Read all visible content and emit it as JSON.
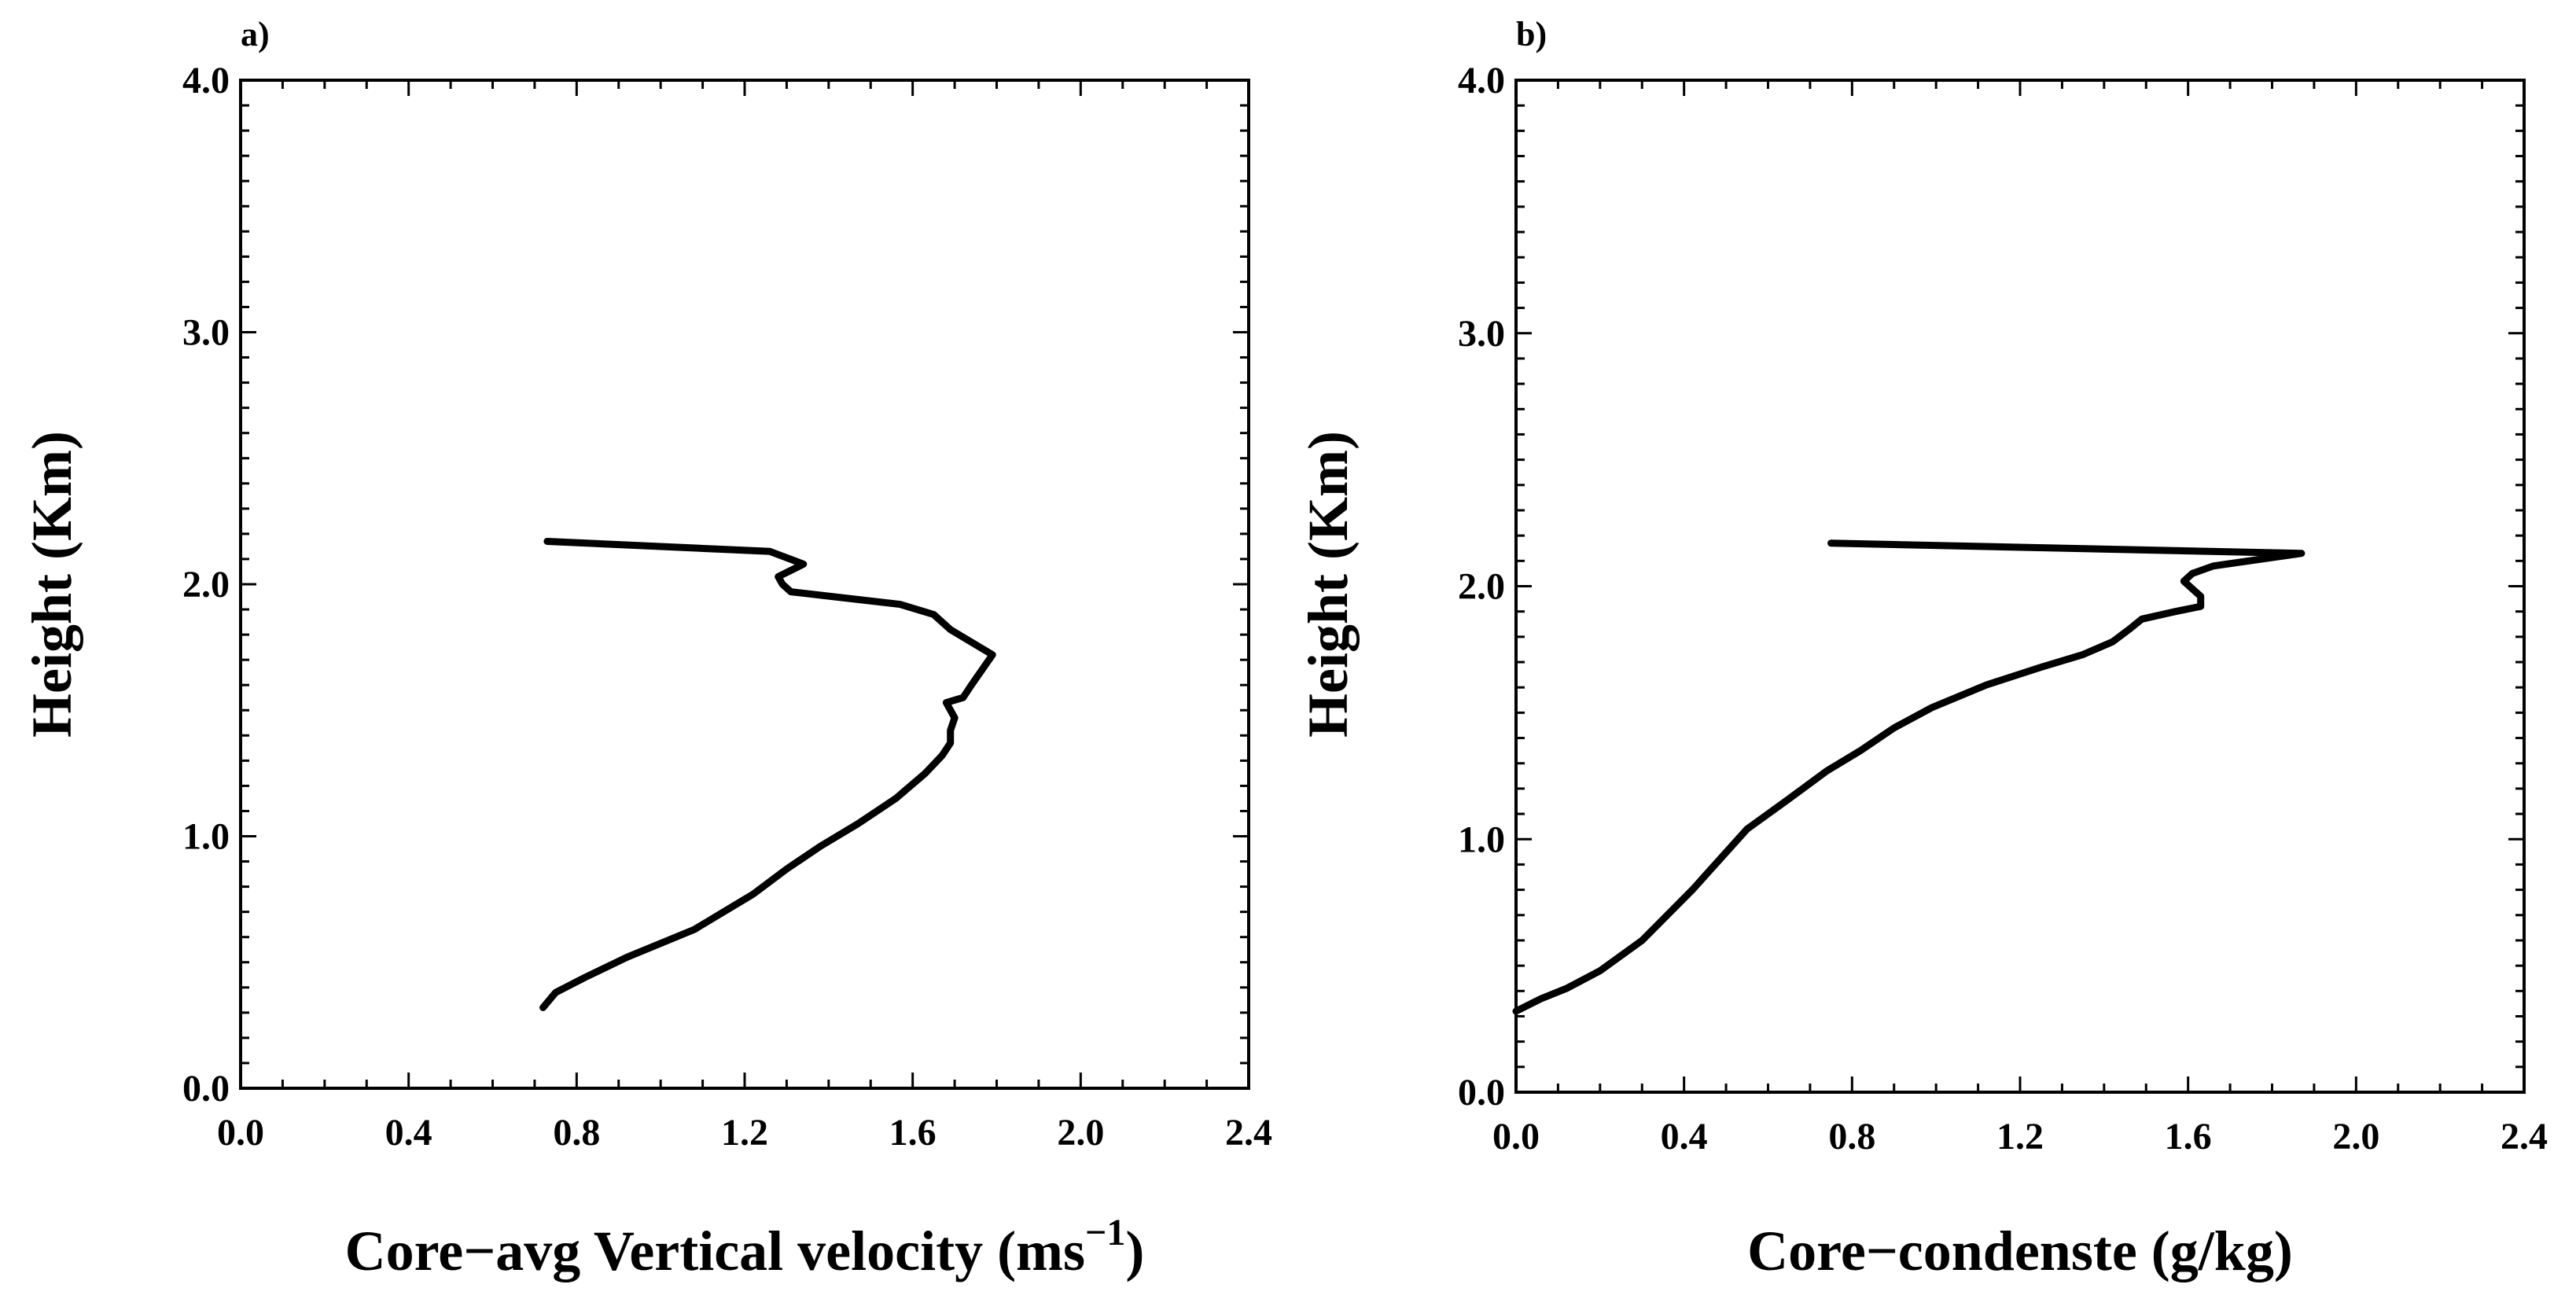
{
  "chart_data": [
    {
      "type": "line",
      "panel_label": "a)",
      "title": "",
      "xlabel": "Core−avg Vertical velocity (ms",
      "xlabel_sup": "−1",
      "xlabel_close": ")",
      "ylabel": "Height (Km)",
      "xlim": [
        0.0,
        2.4
      ],
      "ylim": [
        0.0,
        4.0
      ],
      "xticks": [
        0.0,
        0.4,
        0.8,
        1.2,
        1.6,
        2.0,
        2.4
      ],
      "xtick_labels": [
        "0.0",
        "0.4",
        "0.8",
        "1.2",
        "1.6",
        "2.0",
        "2.4"
      ],
      "yticks": [
        0.0,
        1.0,
        2.0,
        3.0,
        4.0
      ],
      "ytick_labels": [
        "0.0",
        "1.0",
        "2.0",
        "3.0",
        "4.0"
      ],
      "x_minor_step": 0.1,
      "y_minor_step": 0.1,
      "grid": false,
      "series": [
        {
          "name": "core-avg vertical velocity",
          "x": [
            0.72,
            0.75,
            0.82,
            0.92,
            1.08,
            1.22,
            1.3,
            1.38,
            1.47,
            1.56,
            1.63,
            1.67,
            1.69,
            1.69,
            1.7,
            1.68,
            1.72,
            1.74,
            1.79,
            1.69,
            1.65,
            1.57,
            1.31,
            1.29,
            1.28,
            1.34,
            1.26,
            0.73
          ],
          "y": [
            0.32,
            0.38,
            0.44,
            0.52,
            0.63,
            0.77,
            0.87,
            0.96,
            1.05,
            1.15,
            1.25,
            1.32,
            1.37,
            1.42,
            1.47,
            1.53,
            1.55,
            1.6,
            1.72,
            1.82,
            1.88,
            1.92,
            1.97,
            2.0,
            2.03,
            2.08,
            2.13,
            2.17
          ]
        }
      ]
    },
    {
      "type": "line",
      "panel_label": "b)",
      "title": "",
      "xlabel": "Core−condenste (g/kg)",
      "ylabel": "Height (Km)",
      "xlim": [
        0.0,
        2.4
      ],
      "ylim": [
        0.0,
        4.0
      ],
      "xticks": [
        0.0,
        0.4,
        0.8,
        1.2,
        1.6,
        2.0,
        2.4
      ],
      "xtick_labels": [
        "0.0",
        "0.4",
        "0.8",
        "1.2",
        "1.6",
        "2.0",
        "2.4"
      ],
      "yticks": [
        0.0,
        1.0,
        2.0,
        3.0,
        4.0
      ],
      "ytick_labels": [
        "0.0",
        "1.0",
        "2.0",
        "3.0",
        "4.0"
      ],
      "x_minor_step": 0.1,
      "y_minor_step": 0.1,
      "grid": false,
      "series": [
        {
          "name": "core-condensate",
          "x": [
            0.0,
            0.06,
            0.12,
            0.2,
            0.3,
            0.42,
            0.55,
            0.65,
            0.74,
            0.82,
            0.9,
            0.99,
            1.12,
            1.25,
            1.35,
            1.42,
            1.46,
            1.49,
            1.57,
            1.63,
            1.63,
            1.59,
            1.61,
            1.66,
            1.87,
            0.75
          ],
          "y": [
            0.32,
            0.37,
            0.41,
            0.48,
            0.6,
            0.8,
            1.04,
            1.16,
            1.27,
            1.35,
            1.44,
            1.52,
            1.61,
            1.68,
            1.73,
            1.78,
            1.83,
            1.87,
            1.9,
            1.92,
            1.96,
            2.02,
            2.05,
            2.08,
            2.13,
            2.17
          ]
        }
      ]
    }
  ]
}
